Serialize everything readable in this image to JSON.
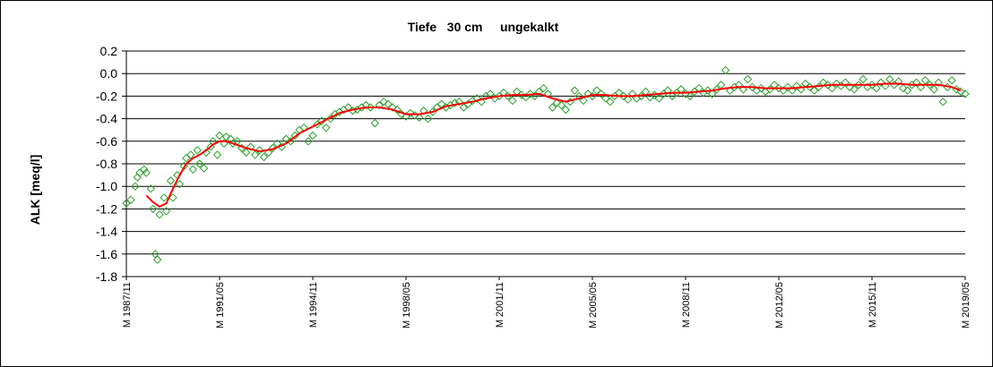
{
  "chart_data": {
    "type": "scatter",
    "title": "Tiefe   30 cm     ungekalkt",
    "ylabel": "ALK [meq/l]",
    "xlabel": "",
    "ylim": [
      -1.8,
      0.2
    ],
    "yticks": [
      0.2,
      0.0,
      -0.2,
      -0.4,
      -0.6,
      -0.8,
      -1.0,
      -1.2,
      -1.4,
      -1.6,
      -1.8
    ],
    "ytick_labels": [
      "0.2",
      "0.0",
      "-0.2",
      "-0.4",
      "-0.6",
      "-0.8",
      "-1.0",
      "-1.2",
      "-1.4",
      "-1.6",
      "-1.8"
    ],
    "xlim": [
      "1987-11",
      "2019-05"
    ],
    "xtick_labels": [
      {
        "date": "1987-11",
        "label": "M 1987/11"
      },
      {
        "date": "1991-05",
        "label": "M 1991/05"
      },
      {
        "date": "1994-11",
        "label": "M 1994/11"
      },
      {
        "date": "1998-05",
        "label": "M 1998/05"
      },
      {
        "date": "2001-11",
        "label": "M 2001/11"
      },
      {
        "date": "2005-05",
        "label": "M 2005/05"
      },
      {
        "date": "2008-11",
        "label": "M 2008/11"
      },
      {
        "date": "2012-05",
        "label": "M 2012/05"
      },
      {
        "date": "2015-11",
        "label": "M 2015/11"
      },
      {
        "date": "2019-05",
        "label": "M 2019/05"
      }
    ],
    "grid": "horizontal",
    "legend": "none",
    "series": [
      {
        "kind": "markers",
        "marker": "diamond",
        "color": "#2ca02c",
        "points": [
          [
            "1987-11",
            -1.15
          ],
          [
            "1988-01",
            -1.12
          ],
          [
            "1988-03",
            -1.0
          ],
          [
            "1988-04",
            -0.92
          ],
          [
            "1988-05",
            -0.88
          ],
          [
            "1988-07",
            -0.85
          ],
          [
            "1988-08",
            -0.88
          ],
          [
            "1988-10",
            -1.02
          ],
          [
            "1988-11",
            -1.2
          ],
          [
            "1988-12",
            -1.6
          ],
          [
            "1989-01",
            -1.65
          ],
          [
            "1989-02",
            -1.25
          ],
          [
            "1989-04",
            -1.1
          ],
          [
            "1989-05",
            -1.22
          ],
          [
            "1989-07",
            -0.95
          ],
          [
            "1989-08",
            -1.1
          ],
          [
            "1989-10",
            -0.9
          ],
          [
            "1989-11",
            -0.98
          ],
          [
            "1990-01",
            -0.82
          ],
          [
            "1990-02",
            -0.75
          ],
          [
            "1990-04",
            -0.72
          ],
          [
            "1990-05",
            -0.85
          ],
          [
            "1990-07",
            -0.68
          ],
          [
            "1990-08",
            -0.8
          ],
          [
            "1990-10",
            -0.84
          ],
          [
            "1990-11",
            -0.7
          ],
          [
            "1991-01",
            -0.65
          ],
          [
            "1991-02",
            -0.6
          ],
          [
            "1991-04",
            -0.72
          ],
          [
            "1991-05",
            -0.55
          ],
          [
            "1991-07",
            -0.62
          ],
          [
            "1991-08",
            -0.56
          ],
          [
            "1991-10",
            -0.58
          ],
          [
            "1991-11",
            -0.62
          ],
          [
            "1992-01",
            -0.6
          ],
          [
            "1992-03",
            -0.66
          ],
          [
            "1992-05",
            -0.7
          ],
          [
            "1992-07",
            -0.65
          ],
          [
            "1992-09",
            -0.72
          ],
          [
            "1992-11",
            -0.68
          ],
          [
            "1993-01",
            -0.74
          ],
          [
            "1993-03",
            -0.7
          ],
          [
            "1993-05",
            -0.66
          ],
          [
            "1993-07",
            -0.62
          ],
          [
            "1993-09",
            -0.65
          ],
          [
            "1993-11",
            -0.58
          ],
          [
            "1994-01",
            -0.6
          ],
          [
            "1994-03",
            -0.55
          ],
          [
            "1994-05",
            -0.5
          ],
          [
            "1994-07",
            -0.48
          ],
          [
            "1994-09",
            -0.6
          ],
          [
            "1994-11",
            -0.55
          ],
          [
            "1995-01",
            -0.45
          ],
          [
            "1995-03",
            -0.42
          ],
          [
            "1995-05",
            -0.48
          ],
          [
            "1995-07",
            -0.4
          ],
          [
            "1995-09",
            -0.36
          ],
          [
            "1995-11",
            -0.34
          ],
          [
            "1996-01",
            -0.32
          ],
          [
            "1996-03",
            -0.3
          ],
          [
            "1996-05",
            -0.33
          ],
          [
            "1996-07",
            -0.32
          ],
          [
            "1996-09",
            -0.3
          ],
          [
            "1996-11",
            -0.28
          ],
          [
            "1997-01",
            -0.3
          ],
          [
            "1997-03",
            -0.44
          ],
          [
            "1997-05",
            -0.28
          ],
          [
            "1997-07",
            -0.25
          ],
          [
            "1997-09",
            -0.27
          ],
          [
            "1997-11",
            -0.3
          ],
          [
            "1998-01",
            -0.32
          ],
          [
            "1998-03",
            -0.36
          ],
          [
            "1998-05",
            -0.38
          ],
          [
            "1998-07",
            -0.35
          ],
          [
            "1998-09",
            -0.37
          ],
          [
            "1998-11",
            -0.39
          ],
          [
            "1999-01",
            -0.33
          ],
          [
            "1999-03",
            -0.4
          ],
          [
            "1999-05",
            -0.34
          ],
          [
            "1999-07",
            -0.3
          ],
          [
            "1999-09",
            -0.27
          ],
          [
            "1999-11",
            -0.3
          ],
          [
            "2000-01",
            -0.28
          ],
          [
            "2000-03",
            -0.26
          ],
          [
            "2000-05",
            -0.25
          ],
          [
            "2000-07",
            -0.3
          ],
          [
            "2000-09",
            -0.27
          ],
          [
            "2000-11",
            -0.24
          ],
          [
            "2001-01",
            -0.22
          ],
          [
            "2001-03",
            -0.25
          ],
          [
            "2001-05",
            -0.2
          ],
          [
            "2001-07",
            -0.18
          ],
          [
            "2001-09",
            -0.22
          ],
          [
            "2001-11",
            -0.2
          ],
          [
            "2002-01",
            -0.17
          ],
          [
            "2002-03",
            -0.2
          ],
          [
            "2002-05",
            -0.24
          ],
          [
            "2002-07",
            -0.16
          ],
          [
            "2002-09",
            -0.19
          ],
          [
            "2002-11",
            -0.21
          ],
          [
            "2003-01",
            -0.18
          ],
          [
            "2003-03",
            -0.2
          ],
          [
            "2003-05",
            -0.16
          ],
          [
            "2003-07",
            -0.13
          ],
          [
            "2003-09",
            -0.18
          ],
          [
            "2003-11",
            -0.3
          ],
          [
            "2004-01",
            -0.26
          ],
          [
            "2004-03",
            -0.28
          ],
          [
            "2004-05",
            -0.32
          ],
          [
            "2004-07",
            -0.25
          ],
          [
            "2004-09",
            -0.15
          ],
          [
            "2004-11",
            -0.2
          ],
          [
            "2005-01",
            -0.24
          ],
          [
            "2005-03",
            -0.18
          ],
          [
            "2005-05",
            -0.2
          ],
          [
            "2005-07",
            -0.15
          ],
          [
            "2005-09",
            -0.18
          ],
          [
            "2005-11",
            -0.22
          ],
          [
            "2006-01",
            -0.25
          ],
          [
            "2006-03",
            -0.2
          ],
          [
            "2006-05",
            -0.17
          ],
          [
            "2006-07",
            -0.2
          ],
          [
            "2006-09",
            -0.23
          ],
          [
            "2006-11",
            -0.18
          ],
          [
            "2007-01",
            -0.22
          ],
          [
            "2007-03",
            -0.2
          ],
          [
            "2007-05",
            -0.16
          ],
          [
            "2007-07",
            -0.21
          ],
          [
            "2007-09",
            -0.19
          ],
          [
            "2007-11",
            -0.22
          ],
          [
            "2008-01",
            -0.18
          ],
          [
            "2008-03",
            -0.15
          ],
          [
            "2008-05",
            -0.2
          ],
          [
            "2008-07",
            -0.17
          ],
          [
            "2008-09",
            -0.14
          ],
          [
            "2008-11",
            -0.18
          ],
          [
            "2009-01",
            -0.2
          ],
          [
            "2009-03",
            -0.16
          ],
          [
            "2009-05",
            -0.13
          ],
          [
            "2009-07",
            -0.17
          ],
          [
            "2009-09",
            -0.15
          ],
          [
            "2009-11",
            -0.18
          ],
          [
            "2010-01",
            -0.14
          ],
          [
            "2010-03",
            -0.1
          ],
          [
            "2010-05",
            0.03
          ],
          [
            "2010-07",
            -0.15
          ],
          [
            "2010-09",
            -0.12
          ],
          [
            "2010-11",
            -0.1
          ],
          [
            "2011-01",
            -0.14
          ],
          [
            "2011-03",
            -0.05
          ],
          [
            "2011-05",
            -0.12
          ],
          [
            "2011-07",
            -0.15
          ],
          [
            "2011-09",
            -0.13
          ],
          [
            "2011-11",
            -0.16
          ],
          [
            "2012-01",
            -0.14
          ],
          [
            "2012-03",
            -0.1
          ],
          [
            "2012-05",
            -0.13
          ],
          [
            "2012-07",
            -0.15
          ],
          [
            "2012-09",
            -0.12
          ],
          [
            "2012-11",
            -0.15
          ],
          [
            "2013-01",
            -0.11
          ],
          [
            "2013-03",
            -0.14
          ],
          [
            "2013-05",
            -0.09
          ],
          [
            "2013-07",
            -0.12
          ],
          [
            "2013-09",
            -0.15
          ],
          [
            "2013-11",
            -0.12
          ],
          [
            "2014-01",
            -0.08
          ],
          [
            "2014-03",
            -0.1
          ],
          [
            "2014-05",
            -0.13
          ],
          [
            "2014-07",
            -0.09
          ],
          [
            "2014-09",
            -0.11
          ],
          [
            "2014-11",
            -0.08
          ],
          [
            "2015-01",
            -0.12
          ],
          [
            "2015-03",
            -0.14
          ],
          [
            "2015-05",
            -0.1
          ],
          [
            "2015-07",
            -0.05
          ],
          [
            "2015-09",
            -0.12
          ],
          [
            "2015-11",
            -0.1
          ],
          [
            "2016-01",
            -0.13
          ],
          [
            "2016-03",
            -0.08
          ],
          [
            "2016-05",
            -0.11
          ],
          [
            "2016-07",
            -0.05
          ],
          [
            "2016-09",
            -0.1
          ],
          [
            "2016-11",
            -0.07
          ],
          [
            "2017-01",
            -0.13
          ],
          [
            "2017-03",
            -0.15
          ],
          [
            "2017-05",
            -0.1
          ],
          [
            "2017-07",
            -0.08
          ],
          [
            "2017-09",
            -0.12
          ],
          [
            "2017-11",
            -0.06
          ],
          [
            "2018-01",
            -0.1
          ],
          [
            "2018-03",
            -0.14
          ],
          [
            "2018-05",
            -0.08
          ],
          [
            "2018-07",
            -0.25
          ],
          [
            "2018-09",
            -0.12
          ],
          [
            "2018-11",
            -0.06
          ],
          [
            "2019-01",
            -0.14
          ],
          [
            "2019-03",
            -0.16
          ],
          [
            "2019-05",
            -0.18
          ]
        ]
      },
      {
        "kind": "line",
        "color": "#ff0000",
        "points": [
          [
            "1988-08",
            -1.08
          ],
          [
            "1988-11",
            -1.14
          ],
          [
            "1989-02",
            -1.18
          ],
          [
            "1989-05",
            -1.15
          ],
          [
            "1989-08",
            -1.02
          ],
          [
            "1989-11",
            -0.9
          ],
          [
            "1990-02",
            -0.8
          ],
          [
            "1990-05",
            -0.75
          ],
          [
            "1990-08",
            -0.72
          ],
          [
            "1990-11",
            -0.68
          ],
          [
            "1991-02",
            -0.63
          ],
          [
            "1991-05",
            -0.6
          ],
          [
            "1991-08",
            -0.6
          ],
          [
            "1991-11",
            -0.62
          ],
          [
            "1992-05",
            -0.66
          ],
          [
            "1992-11",
            -0.69
          ],
          [
            "1993-05",
            -0.67
          ],
          [
            "1993-11",
            -0.62
          ],
          [
            "1994-05",
            -0.53
          ],
          [
            "1994-11",
            -0.47
          ],
          [
            "1995-05",
            -0.41
          ],
          [
            "1995-11",
            -0.35
          ],
          [
            "1996-05",
            -0.32
          ],
          [
            "1996-11",
            -0.3
          ],
          [
            "1997-05",
            -0.3
          ],
          [
            "1997-11",
            -0.32
          ],
          [
            "1998-05",
            -0.36
          ],
          [
            "1998-11",
            -0.36
          ],
          [
            "1999-05",
            -0.34
          ],
          [
            "1999-11",
            -0.29
          ],
          [
            "2000-05",
            -0.27
          ],
          [
            "2000-11",
            -0.25
          ],
          [
            "2001-05",
            -0.22
          ],
          [
            "2001-11",
            -0.2
          ],
          [
            "2002-05",
            -0.19
          ],
          [
            "2002-11",
            -0.19
          ],
          [
            "2003-05",
            -0.18
          ],
          [
            "2003-11",
            -0.22
          ],
          [
            "2004-05",
            -0.25
          ],
          [
            "2004-11",
            -0.22
          ],
          [
            "2005-05",
            -0.19
          ],
          [
            "2005-11",
            -0.19
          ],
          [
            "2006-05",
            -0.2
          ],
          [
            "2006-11",
            -0.2
          ],
          [
            "2007-05",
            -0.19
          ],
          [
            "2007-11",
            -0.18
          ],
          [
            "2008-05",
            -0.17
          ],
          [
            "2008-11",
            -0.17
          ],
          [
            "2009-05",
            -0.16
          ],
          [
            "2009-11",
            -0.15
          ],
          [
            "2010-05",
            -0.13
          ],
          [
            "2010-11",
            -0.12
          ],
          [
            "2011-05",
            -0.12
          ],
          [
            "2011-11",
            -0.13
          ],
          [
            "2012-05",
            -0.13
          ],
          [
            "2012-11",
            -0.13
          ],
          [
            "2013-05",
            -0.12
          ],
          [
            "2013-11",
            -0.11
          ],
          [
            "2014-05",
            -0.1
          ],
          [
            "2014-11",
            -0.1
          ],
          [
            "2015-05",
            -0.1
          ],
          [
            "2015-11",
            -0.1
          ],
          [
            "2016-05",
            -0.09
          ],
          [
            "2016-11",
            -0.09
          ],
          [
            "2017-05",
            -0.1
          ],
          [
            "2017-11",
            -0.1
          ],
          [
            "2018-05",
            -0.1
          ],
          [
            "2018-11",
            -0.12
          ],
          [
            "2019-03",
            -0.15
          ]
        ]
      }
    ]
  }
}
